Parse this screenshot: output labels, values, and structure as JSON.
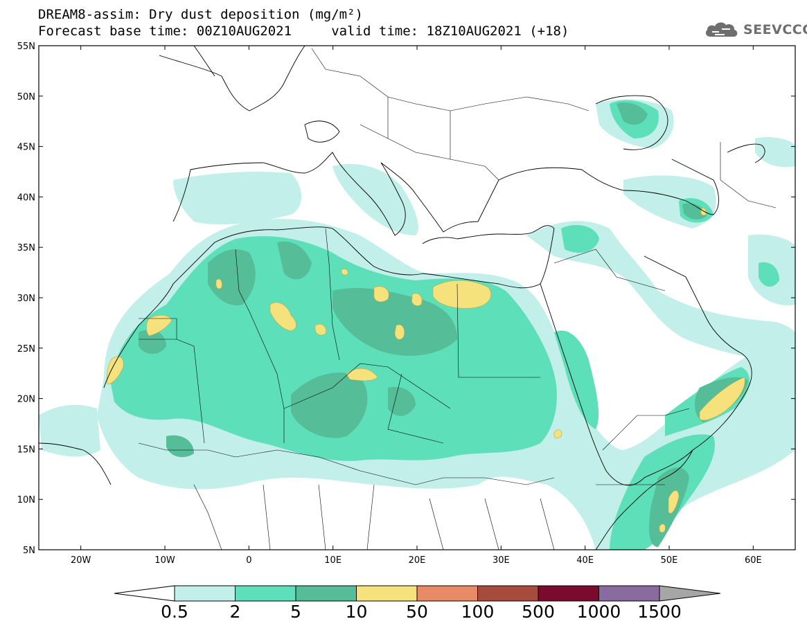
{
  "header": {
    "title_line1": "DREAM8-assim: Dry dust deposition (mg/m²)",
    "title_line2": "Forecast base time: 00Z10AUG2021     valid time: 18Z10AUG2021 (+18)"
  },
  "logo": {
    "text": "SEEVCCC",
    "icon": "cloud-icon"
  },
  "map": {
    "lon_labels": [
      "20W",
      "10W",
      "0",
      "10E",
      "20E",
      "30E",
      "40E",
      "50E",
      "60E"
    ],
    "lat_labels": [
      "55N",
      "50N",
      "45N",
      "40N",
      "35N",
      "30N",
      "25N",
      "20N",
      "15N",
      "10N",
      "5N"
    ],
    "extent": {
      "lon": [
        -25,
        65
      ],
      "lat": [
        5,
        55
      ]
    }
  },
  "colorbar": {
    "labels": [
      "0.5",
      "2",
      "5",
      "10",
      "50",
      "100",
      "500",
      "1000",
      "1500"
    ],
    "colors": [
      "#c2efe9",
      "#5ddfb9",
      "#55bd98",
      "#f5e27c",
      "#e98a66",
      "#a74b3d",
      "#7a0b2e",
      "#8a6ba0"
    ],
    "under_color": "#ffffff",
    "over_color": "#a6a6a6"
  }
}
